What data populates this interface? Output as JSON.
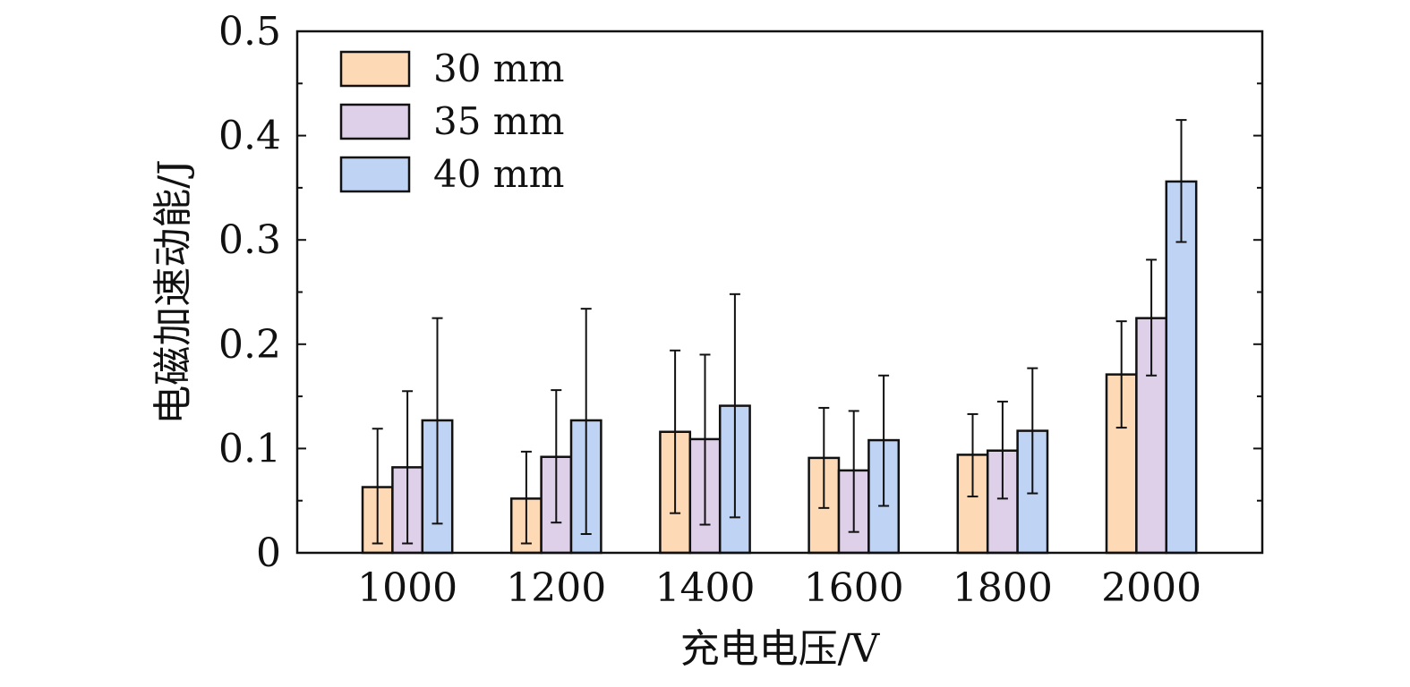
{
  "chart_data": {
    "type": "bar",
    "title": "",
    "xlabel": "充电电压/V",
    "ylabel": "电磁加速动能/J",
    "categories": [
      "1000",
      "1200",
      "1400",
      "1600",
      "1800",
      "2000"
    ],
    "ylim": [
      0,
      0.5
    ],
    "yticks": [
      0,
      0.1,
      0.2,
      0.3,
      0.4,
      0.5
    ],
    "ytick_labels": [
      "0",
      "0.1",
      "0.2",
      "0.3",
      "0.4",
      "0.5"
    ],
    "grid": false,
    "legend_position": "top-left",
    "series": [
      {
        "name": "30 mm",
        "color": "#fdd9b5",
        "values": [
          0.063,
          0.052,
          0.116,
          0.091,
          0.094,
          0.171
        ],
        "err_low": [
          0.009,
          0.009,
          0.038,
          0.043,
          0.054,
          0.12
        ],
        "err_high": [
          0.119,
          0.097,
          0.194,
          0.139,
          0.133,
          0.222
        ]
      },
      {
        "name": "35 mm",
        "color": "#ddd0e8",
        "values": [
          0.082,
          0.092,
          0.109,
          0.079,
          0.098,
          0.225
        ],
        "err_low": [
          0.009,
          0.029,
          0.027,
          0.02,
          0.052,
          0.17
        ],
        "err_high": [
          0.155,
          0.156,
          0.19,
          0.136,
          0.145,
          0.281
        ]
      },
      {
        "name": "40 mm",
        "color": "#bfd3f5",
        "values": [
          0.127,
          0.127,
          0.141,
          0.108,
          0.117,
          0.356
        ],
        "err_low": [
          0.028,
          0.018,
          0.034,
          0.045,
          0.057,
          0.298
        ],
        "err_high": [
          0.225,
          0.234,
          0.248,
          0.17,
          0.177,
          0.415
        ]
      }
    ]
  }
}
